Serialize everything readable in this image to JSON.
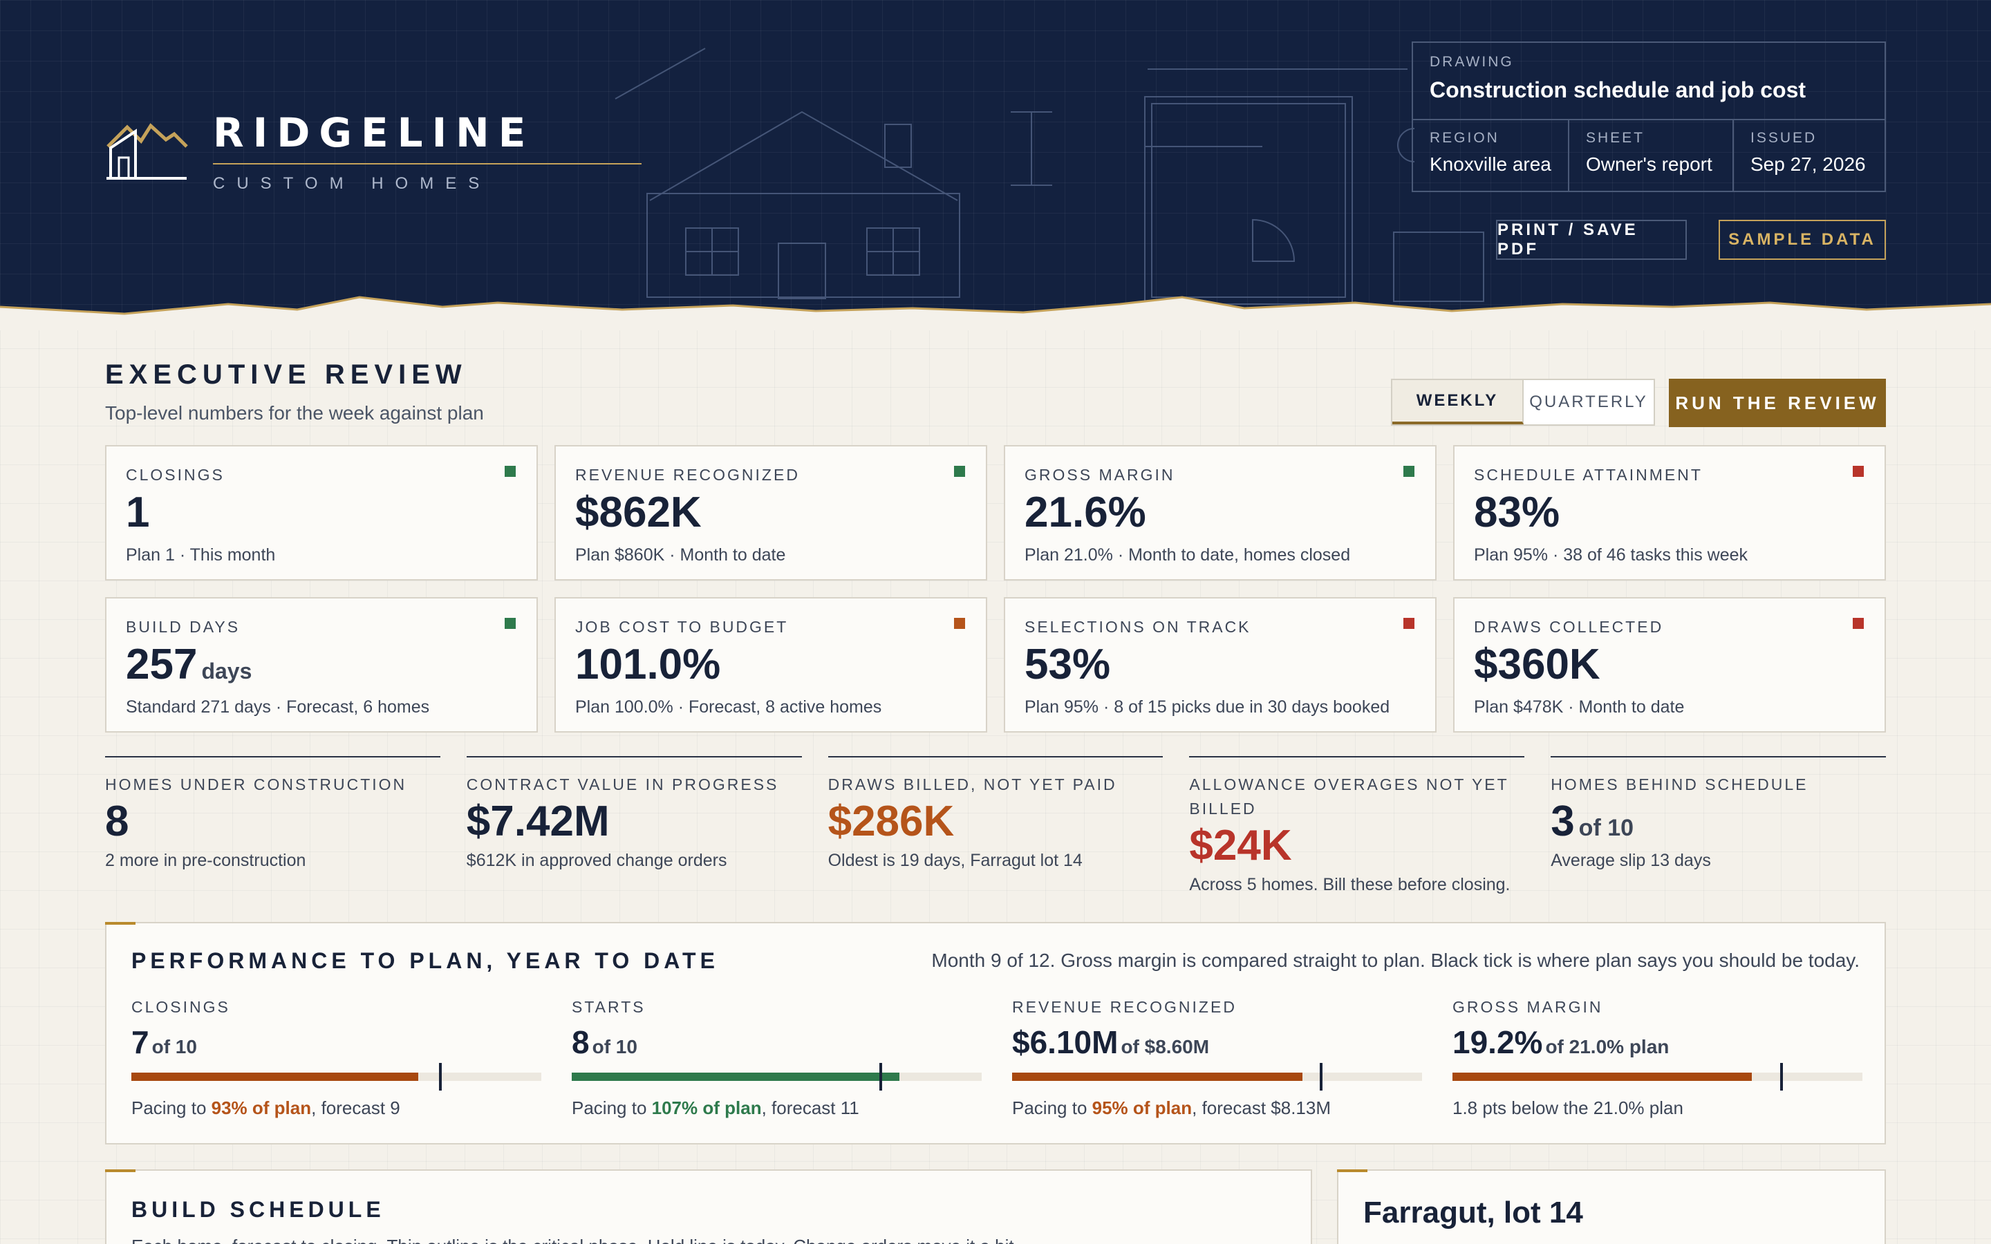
{
  "brand": {
    "name": "RIDGELINE",
    "tagline": "CUSTOM HOMES",
    "logo_icon": "house-mountain-icon"
  },
  "drawing": {
    "label": "DRAWING",
    "title": "Construction schedule and job cost",
    "fields": [
      {
        "label": "REGION",
        "value": "Knoxville area"
      },
      {
        "label": "SHEET",
        "value": "Owner's report"
      },
      {
        "label": "ISSUED",
        "value": "Sep 27, 2026"
      }
    ]
  },
  "header_buttons": {
    "print": "PRINT / SAVE PDF",
    "sample": "SAMPLE DATA"
  },
  "review": {
    "title": "EXECUTIVE REVIEW",
    "subtitle": "Top-level numbers for the week against plan",
    "toggle": [
      "WEEKLY",
      "QUARTERLY"
    ],
    "toggle_selected": "WEEKLY",
    "run_button": "RUN THE REVIEW"
  },
  "colors": {
    "good": "#2e7a4c",
    "warn": "#b5541a",
    "bad": "#b8342a",
    "accent": "#86621f",
    "navy": "#13213f"
  },
  "kpis": [
    {
      "label": "CLOSINGS",
      "value": "1",
      "unit": "",
      "note": "Plan 1 · This month",
      "status": "good"
    },
    {
      "label": "REVENUE RECOGNIZED",
      "value": "$862K",
      "unit": "",
      "note": "Plan $860K · Month to date",
      "status": "good"
    },
    {
      "label": "GROSS MARGIN",
      "value": "21.6%",
      "unit": "",
      "note": "Plan 21.0% · Month to date, homes closed",
      "status": "good"
    },
    {
      "label": "SCHEDULE ATTAINMENT",
      "value": "83%",
      "unit": "",
      "note": "Plan 95% · 38 of 46 tasks this week",
      "status": "bad"
    },
    {
      "label": "BUILD DAYS",
      "value": "257",
      "unit": "days",
      "note": "Standard 271 days · Forecast, 6 homes",
      "status": "good"
    },
    {
      "label": "JOB COST TO BUDGET",
      "value": "101.0%",
      "unit": "",
      "note": "Plan 100.0% · Forecast, 8 active homes",
      "status": "warn"
    },
    {
      "label": "SELECTIONS ON TRACK",
      "value": "53%",
      "unit": "",
      "note": "Plan 95% · 8 of 15 picks due in 30 days booked",
      "status": "bad"
    },
    {
      "label": "DRAWS COLLECTED",
      "value": "$360K",
      "unit": "",
      "note": "Plan $478K · Month to date",
      "status": "bad"
    }
  ],
  "stats": [
    {
      "label": "HOMES UNDER CONSTRUCTION",
      "value": "8",
      "of": "",
      "note": "2 more in pre-construction",
      "tone": "normal"
    },
    {
      "label": "CONTRACT VALUE IN PROGRESS",
      "value": "$7.42M",
      "of": "",
      "note": "$612K in approved change orders",
      "tone": "normal"
    },
    {
      "label": "DRAWS BILLED, NOT YET PAID",
      "value": "$286K",
      "of": "",
      "note": "Oldest is 19 days, Farragut lot 14",
      "tone": "warn"
    },
    {
      "label": "ALLOWANCE OVERAGES NOT YET BILLED",
      "value": "$24K",
      "of": "",
      "note": "Across 5 homes. Bill these before closing.",
      "tone": "bad"
    },
    {
      "label": "HOMES BEHIND SCHEDULE",
      "value": "3",
      "of": "of 10",
      "note": "Average slip 13 days",
      "tone": "normal"
    }
  ],
  "performance": {
    "title": "PERFORMANCE TO PLAN, YEAR TO DATE",
    "description": "Month 9 of 12. Gross margin is compared straight to plan. Black tick is where plan says you should be today.",
    "metrics": [
      {
        "label": "CLOSINGS",
        "value": "7",
        "of": "of 10",
        "progress": 0.7,
        "plan_marker": 0.75,
        "color": "#a8480f",
        "note_pre": "Pacing to ",
        "note_em": "93% of plan",
        "note_post": ", forecast 9",
        "em_color": "#b5541a"
      },
      {
        "label": "STARTS",
        "value": "8",
        "of": "of 10",
        "progress": 0.8,
        "plan_marker": 0.75,
        "color": "#2e7a4c",
        "note_pre": "Pacing to ",
        "note_em": "107% of plan",
        "note_post": ", forecast 11",
        "em_color": "#2e7a4c"
      },
      {
        "label": "REVENUE RECOGNIZED",
        "value": "$6.10M",
        "of": "of $8.60M",
        "progress": 0.709,
        "plan_marker": 0.75,
        "color": "#a8480f",
        "note_pre": "Pacing to ",
        "note_em": "95% of plan",
        "note_post": ", forecast $8.13M",
        "em_color": "#b5541a"
      },
      {
        "label": "GROSS MARGIN",
        "value": "19.2%",
        "of": "of 21.0% plan",
        "progress": 0.73,
        "plan_marker": 0.8,
        "color": "#a8480f",
        "note_pre": "1.8 pts below the 21.0% plan",
        "note_em": "",
        "note_post": "",
        "em_color": "#3d4657"
      }
    ]
  },
  "schedule": {
    "title": "BUILD SCHEDULE",
    "subtitle": "Each home, forecast to closing. Thin outline is the critical phase. Hold line is today. Change orders move it a bit."
  },
  "lot_panel": {
    "title": "Farragut, lot 14"
  }
}
